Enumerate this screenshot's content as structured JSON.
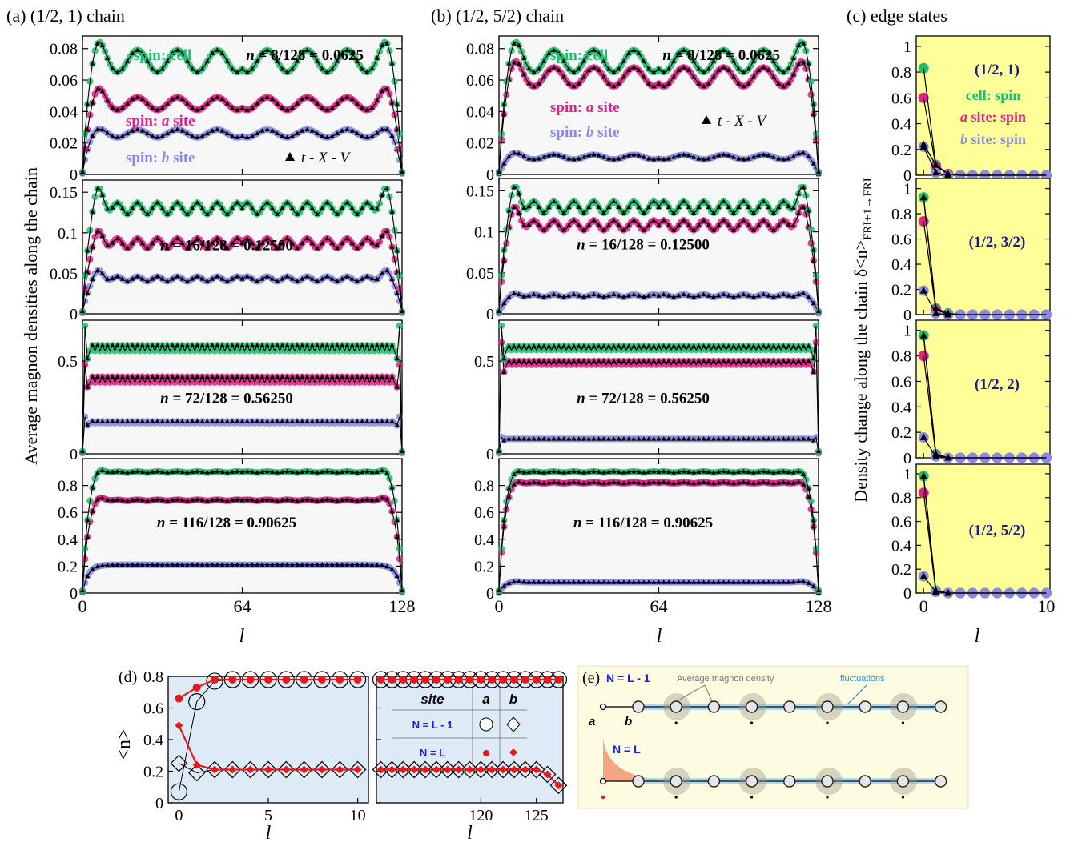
{
  "figure": {
    "panel_a_title": "(a) (1/2, 1) chain",
    "panel_b_title": "(b) (1/2, 5/2) chain",
    "panel_c_title": "(c) edge states",
    "panel_d_label": "(d)",
    "panel_e_label": "(e)",
    "ylabel_ab": "Average magnon densities along the chain",
    "ylabel_c": "Density change along the chain δ<n>FRI+1→FRI",
    "ylabel_d": "<n>",
    "xlabel": "l"
  },
  "legend_ab": {
    "cell": "spin: cell",
    "a_site": "spin: a site",
    "b_site": "spin: b site",
    "txv": "t - X - V"
  },
  "legend_c": {
    "cell": "cell: spin",
    "a_site": "a site: spin",
    "b_site": "b site: spin"
  },
  "colors": {
    "cell": "#1fbf6f",
    "a_site": "#e0218a",
    "b_site": "#8a8ae6",
    "black": "#000000",
    "edge_bg": "#ffff99",
    "panel_d_bg": "#deebf7",
    "panel_e_bg": "#fdfbe0",
    "red": "#e41a1c"
  },
  "chart_data": [
    {
      "panel": "a",
      "type": "line",
      "chain": "(1/2, 1)",
      "N": 128,
      "rows": [
        {
          "label": "n = 8/128 = 0.0625",
          "yticks": [
            "0",
            "0.02",
            "0.04",
            "0.06",
            "0.08"
          ],
          "ylim": [
            0,
            0.088
          ],
          "plateau": {
            "cell": 0.072,
            "a": 0.045,
            "b": 0.026
          },
          "osc": {
            "cell": 0.007,
            "a": 0.004,
            "b": 0.0025
          },
          "peak": {
            "cell": 0.082,
            "a": 0.054,
            "b": 0.028
          },
          "wavelength": 16,
          "edge_spike": null
        },
        {
          "label": "n = 16/128 = 0.12500",
          "yticks": [
            "0",
            "0.05",
            "0.1",
            "0.15"
          ],
          "ylim": [
            0,
            0.165
          ],
          "plateau": {
            "cell": 0.13,
            "a": 0.087,
            "b": 0.043
          },
          "osc": {
            "cell": 0.007,
            "a": 0.006,
            "b": 0.003
          },
          "peak": {
            "cell": 0.158,
            "a": 0.103,
            "b": 0.054
          },
          "wavelength": 8,
          "edge_spike": null
        },
        {
          "label": "n = 72/128 = 0.56250",
          "yticks": [
            "0",
            "0.5"
          ],
          "ylim": [
            0,
            0.72
          ],
          "plateau": {
            "cell": 0.57,
            "a": 0.4,
            "b": 0.17
          },
          "osc": {
            "cell": 0.015,
            "a": 0.015,
            "b": 0.005
          },
          "peak": {
            "cell": 0.69,
            "a": 0.48,
            "b": 0.2
          },
          "wavelength": 2,
          "edge_spike": true
        },
        {
          "label": "n = 116/128 = 0.90625",
          "yticks": [
            "0",
            "0.2",
            "0.4",
            "0.6",
            "0.8"
          ],
          "ylim": [
            0,
            1.0
          ],
          "plateau": {
            "cell": 0.9,
            "a": 0.69,
            "b": 0.21
          },
          "osc": {
            "cell": 0.004,
            "a": 0.004,
            "b": 0.0
          },
          "peak": {
            "cell": 0.95,
            "a": 0.74,
            "b": 0.21
          },
          "wavelength": 8,
          "edge_spike": null
        }
      ],
      "xticks": [
        0,
        64,
        128
      ],
      "xlim": [
        0,
        128
      ]
    },
    {
      "panel": "b",
      "type": "line",
      "chain": "(1/2, 5/2)",
      "N": 128,
      "rows": [
        {
          "label": "n = 8/128 = 0.0625",
          "yticks": [
            "0",
            "0.02",
            "0.04",
            "0.06",
            "0.08"
          ],
          "ylim": [
            0,
            0.088
          ],
          "plateau": {
            "cell": 0.072,
            "a": 0.062,
            "b": 0.011
          },
          "osc": {
            "cell": 0.007,
            "a": 0.006,
            "b": 0.0015
          },
          "peak": {
            "cell": 0.082,
            "a": 0.07,
            "b": 0.013
          },
          "wavelength": 16,
          "edge_spike": null
        },
        {
          "label": "n = 16/128 = 0.12500",
          "yticks": [
            "0",
            "0.05",
            "0.1",
            "0.15"
          ],
          "ylim": [
            0,
            0.165
          ],
          "plateau": {
            "cell": 0.13,
            "a": 0.108,
            "b": 0.022
          },
          "osc": {
            "cell": 0.007,
            "a": 0.006,
            "b": 0.0015
          },
          "peak": {
            "cell": 0.158,
            "a": 0.133,
            "b": 0.025
          },
          "wavelength": 8,
          "edge_spike": null
        },
        {
          "label": "n = 72/128 = 0.56250",
          "yticks": [
            "0",
            "0.5"
          ],
          "ylim": [
            0,
            0.72
          ],
          "plateau": {
            "cell": 0.57,
            "a": 0.49,
            "b": 0.08
          },
          "osc": {
            "cell": 0.01,
            "a": 0.01,
            "b": 0.0
          },
          "peak": {
            "cell": 0.69,
            "a": 0.6,
            "b": 0.09
          },
          "wavelength": 2,
          "edge_spike": true
        },
        {
          "label": "n = 116/128 = 0.90625",
          "yticks": [
            "0",
            "0.2",
            "0.4",
            "0.6",
            "0.8"
          ],
          "ylim": [
            0,
            1.0
          ],
          "plateau": {
            "cell": 0.9,
            "a": 0.82,
            "b": 0.08
          },
          "osc": {
            "cell": 0.004,
            "a": 0.004,
            "b": 0.0
          },
          "peak": {
            "cell": 0.94,
            "a": 0.86,
            "b": 0.09
          },
          "wavelength": 8,
          "edge_spike": null
        }
      ],
      "xticks": [
        0,
        64,
        128
      ],
      "xlim": [
        0,
        128
      ]
    },
    {
      "panel": "c",
      "type": "line",
      "x": [
        0,
        1,
        2,
        3,
        4,
        5,
        6,
        7,
        8,
        9,
        10
      ],
      "rows": [
        {
          "label": "(1/2, 1)",
          "cell": [
            0.83,
            0.08,
            0.01,
            0,
            0,
            0,
            0,
            0,
            0,
            0,
            0
          ],
          "a": [
            0.6,
            0.07,
            0.01,
            0,
            0,
            0,
            0,
            0,
            0,
            0,
            0
          ],
          "b": [
            0.22,
            0.02,
            0,
            0,
            0,
            0,
            0,
            0,
            0,
            0,
            0
          ],
          "txv": [
            0.24,
            0.08,
            0.01,
            0,
            0,
            0,
            0,
            0,
            0,
            0,
            0
          ]
        },
        {
          "label": "(1/2, 3/2)",
          "cell": [
            0.93,
            0.05,
            0.01,
            0,
            0,
            0,
            0,
            0,
            0,
            0,
            0
          ],
          "a": [
            0.74,
            0.04,
            0,
            0,
            0,
            0,
            0,
            0,
            0,
            0,
            0
          ],
          "b": [
            0.19,
            0.01,
            0,
            0,
            0,
            0,
            0,
            0,
            0,
            0,
            0
          ],
          "txv": [
            0.93,
            0.05,
            0.01,
            0,
            0,
            0,
            0,
            0,
            0,
            0,
            0
          ]
        },
        {
          "label": "(1/2, 2)",
          "cell": [
            0.96,
            0.03,
            0,
            0,
            0,
            0,
            0,
            0,
            0,
            0,
            0
          ],
          "a": [
            0.8,
            0.02,
            0,
            0,
            0,
            0,
            0,
            0,
            0,
            0,
            0
          ],
          "b": [
            0.16,
            0.01,
            0,
            0,
            0,
            0,
            0,
            0,
            0,
            0,
            0
          ],
          "txv": [
            0.96,
            0.03,
            0,
            0,
            0,
            0,
            0,
            0,
            0,
            0,
            0
          ]
        },
        {
          "label": "(1/2, 5/2)",
          "cell": [
            0.98,
            0.02,
            0,
            0,
            0,
            0,
            0,
            0,
            0,
            0,
            0
          ],
          "a": [
            0.84,
            0.01,
            0,
            0,
            0,
            0,
            0,
            0,
            0,
            0,
            0
          ],
          "b": [
            0.14,
            0.01,
            0,
            0,
            0,
            0,
            0,
            0,
            0,
            0,
            0
          ],
          "txv": [
            0.98,
            0.02,
            0,
            0,
            0,
            0,
            0,
            0,
            0,
            0,
            0
          ]
        }
      ],
      "yticks": [
        "0",
        "0.2",
        "0.4",
        "0.6",
        "0.8",
        "1"
      ],
      "ylim": [
        0,
        1.08
      ],
      "xticks": [
        0,
        10
      ],
      "xlim": [
        -0.6,
        10.3
      ]
    },
    {
      "panel": "d",
      "type": "scatter",
      "left": {
        "x": [
          0,
          1,
          2,
          3,
          4,
          5,
          6,
          7,
          8,
          9,
          10
        ],
        "a_N_minus_1": [
          0.07,
          0.64,
          0.77,
          0.78,
          0.78,
          0.78,
          0.78,
          0.78,
          0.78,
          0.78,
          0.78
        ],
        "b_N_minus_1": [
          0.25,
          0.19,
          0.21,
          0.21,
          0.21,
          0.21,
          0.21,
          0.21,
          0.21,
          0.21,
          0.21
        ],
        "a_N": [
          0.66,
          0.73,
          0.78,
          0.78,
          0.78,
          0.78,
          0.78,
          0.78,
          0.78,
          0.78,
          0.78
        ],
        "b_N": [
          0.49,
          0.24,
          0.21,
          0.21,
          0.21,
          0.21,
          0.21,
          0.21,
          0.21,
          0.21,
          0.21
        ],
        "xticks": [
          0,
          5,
          10
        ],
        "xlim": [
          -0.6,
          10.6
        ]
      },
      "right": {
        "x": [
          111,
          112,
          113,
          114,
          115,
          116,
          117,
          118,
          119,
          120,
          121,
          122,
          123,
          124,
          125,
          126,
          127
        ],
        "a_N_minus_1": [
          0.78,
          0.78,
          0.78,
          0.78,
          0.78,
          0.78,
          0.78,
          0.78,
          0.78,
          0.78,
          0.78,
          0.78,
          0.78,
          0.78,
          0.78,
          0.78,
          0.78
        ],
        "b_N_minus_1": [
          0.21,
          0.21,
          0.21,
          0.21,
          0.21,
          0.21,
          0.21,
          0.21,
          0.21,
          0.21,
          0.21,
          0.21,
          0.21,
          0.21,
          0.21,
          0.18,
          0.11
        ],
        "a_N": [
          0.78,
          0.78,
          0.78,
          0.78,
          0.78,
          0.78,
          0.78,
          0.78,
          0.78,
          0.78,
          0.78,
          0.78,
          0.78,
          0.78,
          0.78,
          0.78,
          0.78
        ],
        "b_N": [
          0.21,
          0.21,
          0.21,
          0.21,
          0.21,
          0.21,
          0.21,
          0.21,
          0.21,
          0.21,
          0.21,
          0.21,
          0.21,
          0.21,
          0.21,
          0.18,
          0.11
        ],
        "xticks": [
          120,
          125
        ],
        "xlim": [
          110.6,
          127.4
        ]
      },
      "yticks": [
        "0",
        "0.2",
        "0.4",
        "0.6",
        "0.8"
      ],
      "ylim": [
        0,
        0.8
      ],
      "legend": {
        "site": "site",
        "col_a": "a",
        "col_b": "b",
        "row1": "N = L - 1",
        "row2": "N = L"
      }
    }
  ],
  "panel_e": {
    "label_top": "N = L - 1",
    "label_bottom": "N = L",
    "annotation_density": "Average magnon density",
    "annotation_fluct": "fluctuations",
    "site_a": "a",
    "site_b": "b"
  }
}
